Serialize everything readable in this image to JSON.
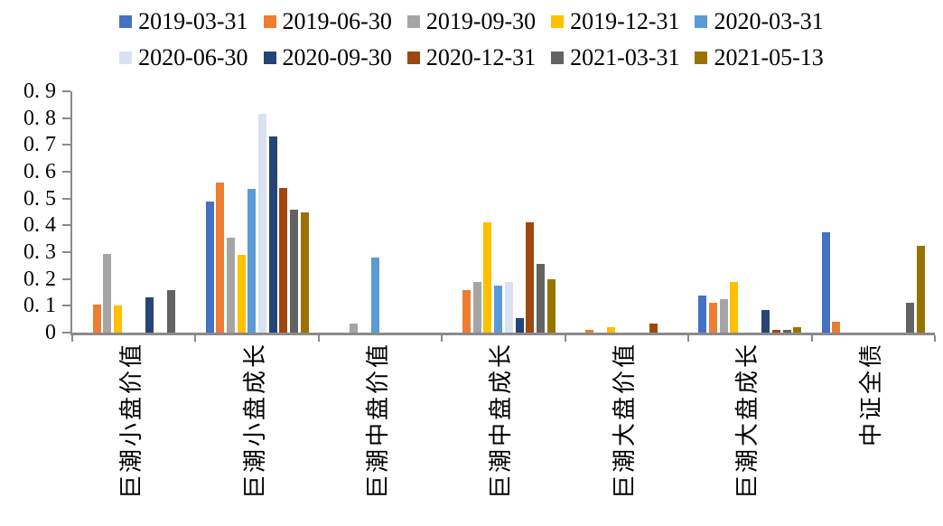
{
  "chart_data": {
    "type": "bar",
    "title": "",
    "xlabel": "",
    "ylabel": "",
    "grid": false,
    "legend_position": "top",
    "legend_per_row": 5,
    "ylim": [
      0,
      0.9
    ],
    "ytick_step": 0.1,
    "ytick_labels": [
      "0",
      "0. 1",
      "0. 2",
      "0. 3",
      "0. 4",
      "0. 5",
      "0. 6",
      "0. 7",
      "0. 8",
      "0. 9"
    ],
    "axis_color": "#8a8a8a",
    "categories": [
      "巨潮小盘价值",
      "巨潮小盘成长",
      "巨潮中盘价值",
      "巨潮中盘成长",
      "巨潮大盘价值",
      "巨潮大盘成长",
      "中证全债"
    ],
    "series": [
      {
        "name": "2019-03-31",
        "color": "#4472C4",
        "values": [
          0,
          0.49,
          0,
          0,
          0,
          0.14,
          0.375
        ]
      },
      {
        "name": "2019-06-30",
        "color": "#ED7D31",
        "values": [
          0.105,
          0.56,
          0,
          0.16,
          0.01,
          0.11,
          0.04
        ]
      },
      {
        "name": "2019-09-30",
        "color": "#A5A5A5",
        "values": [
          0.295,
          0.355,
          0.035,
          0.19,
          0,
          0.125,
          0
        ]
      },
      {
        "name": "2019-12-31",
        "color": "#FFC000",
        "values": [
          0.1,
          0.29,
          0,
          0.41,
          0.02,
          0.19,
          0
        ]
      },
      {
        "name": "2020-03-31",
        "color": "#5B9BD5",
        "values": [
          0,
          0.535,
          0.28,
          0.175,
          0,
          0,
          0
        ]
      },
      {
        "name": "2020-06-30",
        "color": "#D9E1F2",
        "values": [
          0,
          0.815,
          0,
          0.19,
          0,
          0,
          0
        ]
      },
      {
        "name": "2020-09-30",
        "color": "#264478",
        "values": [
          0.13,
          0.73,
          0,
          0.055,
          0,
          0.085,
          0
        ]
      },
      {
        "name": "2020-12-31",
        "color": "#9E480E",
        "values": [
          0,
          0.54,
          0,
          0.41,
          0.035,
          0.01,
          0
        ]
      },
      {
        "name": "2021-03-31",
        "color": "#636363",
        "values": [
          0.16,
          0.46,
          0,
          0.255,
          0,
          0.01,
          0.11
        ]
      },
      {
        "name": "2021-05-13",
        "color": "#997300",
        "values": [
          0,
          0.45,
          0,
          0.2,
          0,
          0.02,
          0.325
        ]
      }
    ]
  }
}
